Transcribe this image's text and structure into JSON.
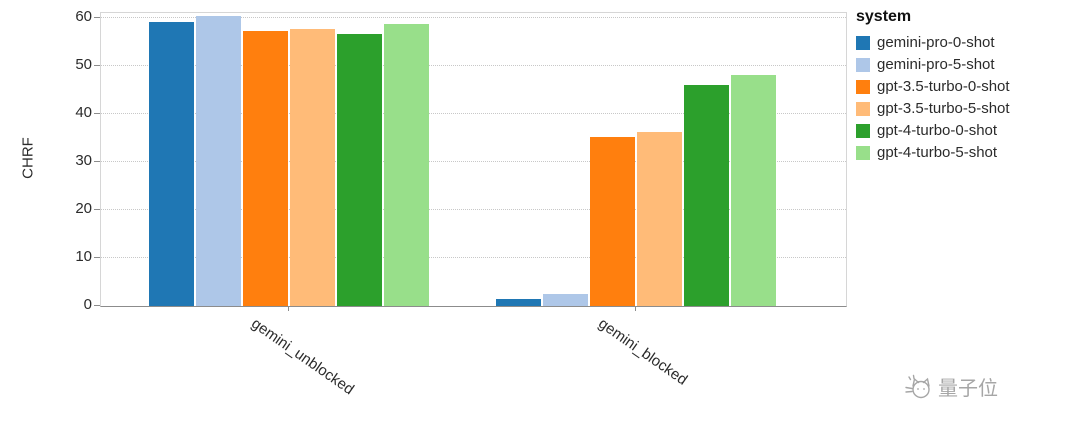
{
  "chart_data": {
    "type": "bar",
    "title": "",
    "xlabel": "",
    "ylabel": "CHRF",
    "ylim": [
      0,
      60
    ],
    "yticks": [
      0,
      10,
      20,
      30,
      40,
      50,
      60
    ],
    "grid": "horizontal-dotted",
    "legend_title": "system",
    "legend_position": "right",
    "categories": [
      "gemini_unblocked",
      "gemini_blocked"
    ],
    "series": [
      {
        "name": "gemini-pro-0-shot",
        "color": "#1f77b4",
        "values": [
          59.2,
          1.4
        ]
      },
      {
        "name": "gemini-pro-5-shot",
        "color": "#aec7e8",
        "values": [
          60.4,
          2.4
        ]
      },
      {
        "name": "gpt-3.5-turbo-0-shot",
        "color": "#ff7f0e",
        "values": [
          57.2,
          35.3
        ]
      },
      {
        "name": "gpt-3.5-turbo-5-shot",
        "color": "#ffbb78",
        "values": [
          57.8,
          36.2
        ]
      },
      {
        "name": "gpt-4-turbo-0-shot",
        "color": "#2ca02c",
        "values": [
          56.6,
          46.1
        ]
      },
      {
        "name": "gpt-4-turbo-5-shot",
        "color": "#98df8a",
        "values": [
          58.8,
          48.2
        ]
      }
    ]
  },
  "watermark": {
    "text": "量子位"
  }
}
